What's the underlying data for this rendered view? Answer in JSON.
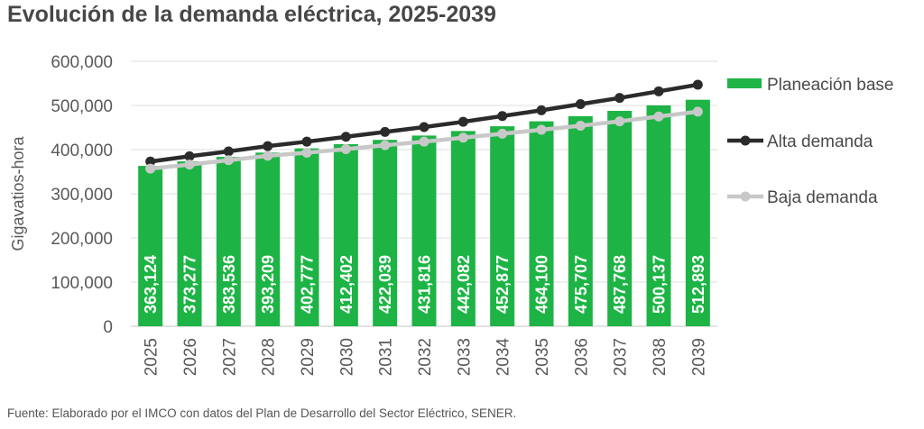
{
  "chart_data": {
    "type": "bar",
    "title": "Evolución de la demanda eléctrica, 2025-2039",
    "xlabel": "",
    "ylabel": "Gigavatios-hora",
    "ylim": [
      0,
      600000
    ],
    "yticks": [
      0,
      100000,
      200000,
      300000,
      400000,
      500000,
      600000
    ],
    "ytick_labels": [
      "0",
      "100,000",
      "200,000",
      "300,000",
      "400,000",
      "500,000",
      "600,000"
    ],
    "grid": true,
    "legend_position": "right",
    "categories": [
      "2025",
      "2026",
      "2027",
      "2028",
      "2029",
      "2030",
      "2031",
      "2032",
      "2033",
      "2034",
      "2035",
      "2036",
      "2037",
      "2038",
      "2039"
    ],
    "series": [
      {
        "name": "Planeación base",
        "type": "bar",
        "color": "#1db445",
        "values": [
          363124,
          373277,
          383536,
          393209,
          402777,
          412402,
          422039,
          431816,
          442082,
          452877,
          464100,
          475707,
          487768,
          500137,
          512893
        ],
        "labels": [
          "363,124",
          "373,277",
          "383,536",
          "393,209",
          "402,777",
          "412,402",
          "422,039",
          "431,816",
          "442,082",
          "452,877",
          "464,100",
          "475,707",
          "487,768",
          "500,137",
          "512,893"
        ]
      },
      {
        "name": "Alta demanda",
        "type": "line",
        "color": "#2b2b2b",
        "values": [
          373000,
          385000,
          396000,
          408000,
          418000,
          429000,
          440000,
          451000,
          463000,
          476000,
          489000,
          503000,
          517000,
          532000,
          547000
        ]
      },
      {
        "name": "Baja demanda",
        "type": "line",
        "color": "#c8c8c8",
        "values": [
          357000,
          366000,
          376000,
          386000,
          393000,
          401000,
          410000,
          418000,
          427000,
          436000,
          445000,
          454000,
          464000,
          475000,
          486000
        ]
      }
    ]
  },
  "source": "Fuente: Elaborado por el IMCO con datos del Plan de Desarrollo del Sector Eléctrico, SENER."
}
